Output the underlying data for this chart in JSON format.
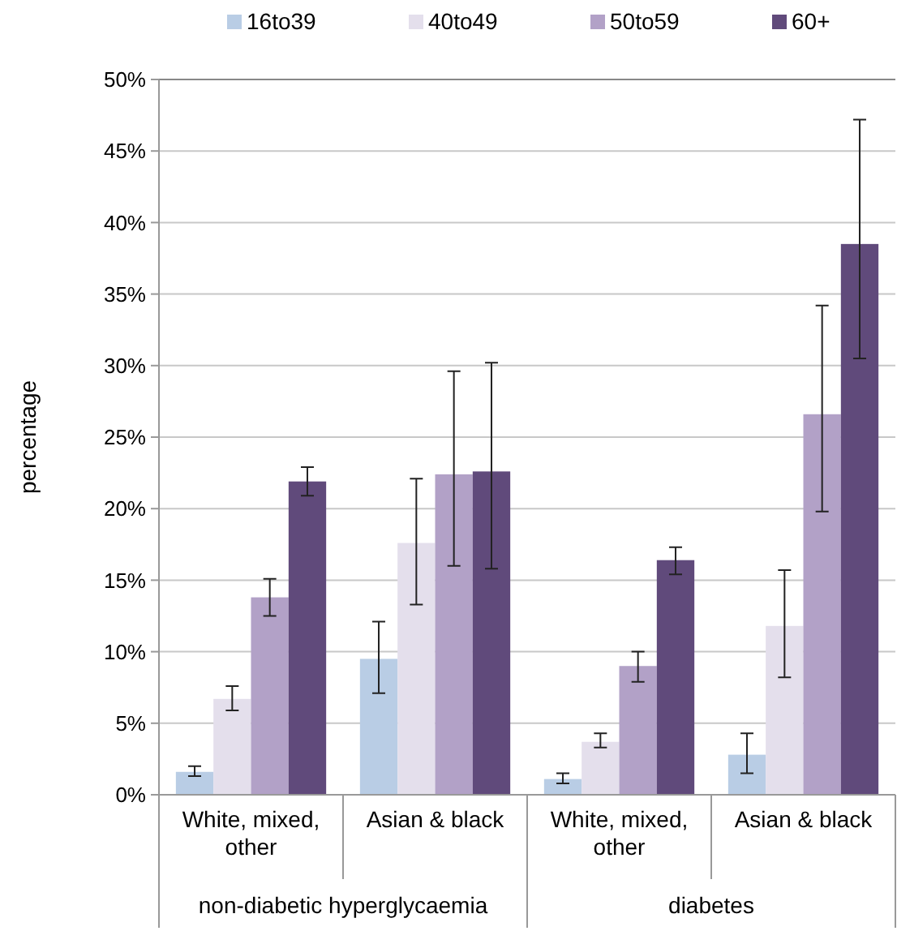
{
  "chart_data": {
    "type": "bar",
    "ylabel": "percentage",
    "categories": [
      "White, mixed, other",
      "Asian & black",
      "White, mixed, other",
      "Asian & black"
    ],
    "annotations": [
      "non-diabetic hyperglycaemia",
      "diabetes"
    ],
    "series": [
      {
        "name": "16to39",
        "color": "#b9cde5",
        "values": [
          1.6,
          9.5,
          1.1,
          2.8
        ],
        "errors": [
          [
            1.3,
            2.0
          ],
          [
            7.1,
            12.1
          ],
          [
            0.8,
            1.5
          ],
          [
            1.5,
            4.3
          ]
        ]
      },
      {
        "name": "40to49",
        "color": "#e4dfec",
        "values": [
          6.7,
          17.6,
          3.7,
          11.8
        ],
        "errors": [
          [
            5.9,
            7.6
          ],
          [
            13.3,
            22.1
          ],
          [
            3.3,
            4.3
          ],
          [
            8.2,
            15.7
          ]
        ]
      },
      {
        "name": "50to59",
        "color": "#b2a1c7",
        "values": [
          13.8,
          22.4,
          9.0,
          26.6
        ],
        "errors": [
          [
            12.5,
            15.1
          ],
          [
            16.0,
            29.6
          ],
          [
            7.9,
            10.0
          ],
          [
            19.8,
            34.2
          ]
        ]
      },
      {
        "name": "60+",
        "color": "#604a7b",
        "values": [
          21.9,
          22.6,
          16.4,
          38.5
        ],
        "errors": [
          [
            20.9,
            22.9
          ],
          [
            15.8,
            30.2
          ],
          [
            15.4,
            17.3
          ],
          [
            30.5,
            47.2
          ]
        ]
      }
    ],
    "ylim": [
      0,
      50
    ],
    "yticks": [
      {
        "value": 0,
        "label": "0%"
      },
      {
        "value": 5,
        "label": "5%"
      },
      {
        "value": 10,
        "label": "10%"
      },
      {
        "value": 15,
        "label": "15%"
      },
      {
        "value": 20,
        "label": "20%"
      },
      {
        "value": 25,
        "label": "25%"
      },
      {
        "value": 30,
        "label": "30%"
      },
      {
        "value": 35,
        "label": "35%"
      },
      {
        "value": 40,
        "label": "40%"
      },
      {
        "value": 45,
        "label": "45%"
      },
      {
        "value": 50,
        "label": "50%"
      }
    ],
    "grid": "y",
    "legend": "top"
  }
}
